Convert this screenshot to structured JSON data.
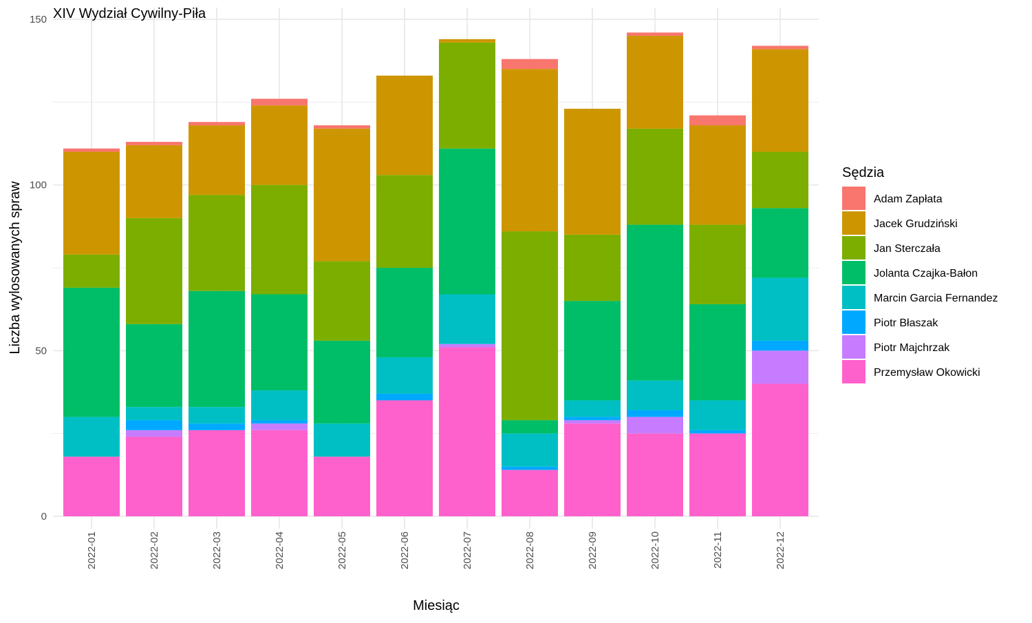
{
  "chart_data": {
    "type": "bar",
    "stacked": true,
    "title": "XIV Wydział Cywilny-Piła",
    "xlabel": "Miesiąc",
    "ylabel": "Liczba wylosowanych spraw",
    "ylim": [
      0,
      150
    ],
    "yticks": [
      0,
      50,
      100,
      150
    ],
    "grid": true,
    "legend_title": "Sędzia",
    "legend_position": "right",
    "categories": [
      "2022-01",
      "2022-02",
      "2022-03",
      "2022-04",
      "2022-05",
      "2022-06",
      "2022-07",
      "2022-08",
      "2022-09",
      "2022-10",
      "2022-11",
      "2022-12"
    ],
    "series": [
      {
        "name": "Przemysław Okowicki",
        "color": "#FF61CC",
        "values": [
          18,
          24,
          26,
          26,
          18,
          35,
          51,
          14,
          28,
          25,
          25,
          40
        ]
      },
      {
        "name": "Piotr Majchrzak",
        "color": "#C77CFF",
        "values": [
          0,
          2,
          0,
          2,
          0,
          0,
          1,
          0,
          1,
          5,
          0,
          10
        ]
      },
      {
        "name": "Piotr Błaszak",
        "color": "#00A9FF",
        "values": [
          0,
          3,
          2,
          1,
          0,
          2,
          0,
          1,
          1,
          2,
          1,
          3
        ]
      },
      {
        "name": "Marcin Garcia Fernandez",
        "color": "#00BFC4",
        "values": [
          12,
          4,
          5,
          9,
          10,
          11,
          15,
          10,
          5,
          9,
          9,
          19
        ]
      },
      {
        "name": "Jolanta Czajka-Bałon",
        "color": "#00BE67",
        "values": [
          39,
          25,
          35,
          29,
          25,
          27,
          44,
          4,
          30,
          47,
          29,
          21
        ]
      },
      {
        "name": "Jan Sterczała",
        "color": "#7CAE00",
        "values": [
          10,
          32,
          29,
          33,
          24,
          28,
          32,
          57,
          20,
          29,
          24,
          17
        ]
      },
      {
        "name": "Jacek Grudziński",
        "color": "#CD9600",
        "values": [
          31,
          22,
          21,
          24,
          40,
          30,
          1,
          49,
          38,
          28,
          30,
          31
        ]
      },
      {
        "name": "Adam Zapłata",
        "color": "#F8766D",
        "values": [
          1,
          1,
          1,
          2,
          1,
          0,
          0,
          3,
          0,
          1,
          3,
          1
        ]
      }
    ],
    "legend_order": [
      "Adam Zapłata",
      "Jacek Grudziński",
      "Jan Sterczała",
      "Jolanta Czajka-Bałon",
      "Marcin Garcia Fernandez",
      "Piotr Błaszak",
      "Piotr Majchrzak",
      "Przemysław Okowicki"
    ]
  },
  "colors": {
    "grid": "#EBEBEB",
    "axis_text": "#4D4D4D",
    "text": "#000000",
    "background": "#FFFFFF"
  }
}
